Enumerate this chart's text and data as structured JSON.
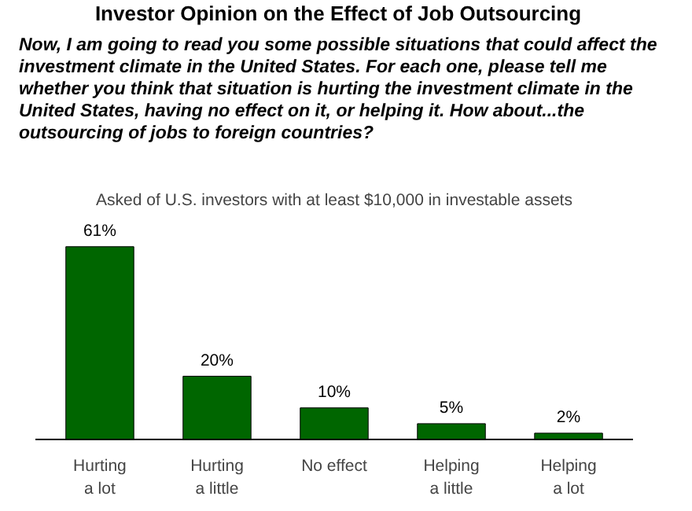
{
  "chart_data": {
    "type": "bar",
    "title": "Investor Opinion on the Effect of Job Outsourcing",
    "subtitle": "Now, I am going to read you some possible situations that could affect the investment climate in the United States. For each one, please tell me whether you think that situation is hurting the investment climate in the United States, having no effect on it, or helping it. How about...the outsourcing of jobs to foreign countries?",
    "annotations": [
      "Asked of U.S. investors with at least $10,000 in investable assets"
    ],
    "categories": [
      "Hurting a lot",
      "Hurting a little",
      "No effect",
      "Helping a little",
      "Helping a lot"
    ],
    "values": [
      61,
      20,
      10,
      5,
      2
    ],
    "value_labels": [
      "61%",
      "20%",
      "10%",
      "5%",
      "2%"
    ],
    "color": "#006600"
  }
}
